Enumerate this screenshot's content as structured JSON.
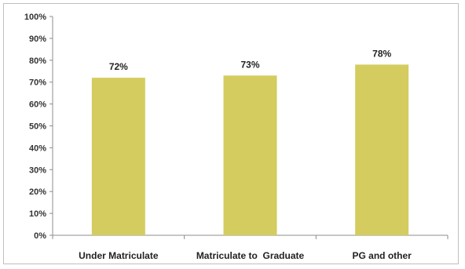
{
  "chart_data": {
    "type": "bar",
    "title": "",
    "xlabel": "",
    "ylabel": "",
    "categories": [
      "Under Matriculate",
      "Matriculate to  Graduate",
      "PG and other"
    ],
    "values": [
      72,
      73,
      78
    ],
    "data_labels": [
      "72%",
      "73%",
      "78%"
    ],
    "y_ticks": [
      "0%",
      "10%",
      "20%",
      "30%",
      "40%",
      "50%",
      "60%",
      "70%",
      "80%",
      "90%",
      "100%"
    ],
    "ylim": [
      0,
      100
    ],
    "grid": false,
    "legend": "none",
    "bar_color": "#d4cc5e"
  }
}
